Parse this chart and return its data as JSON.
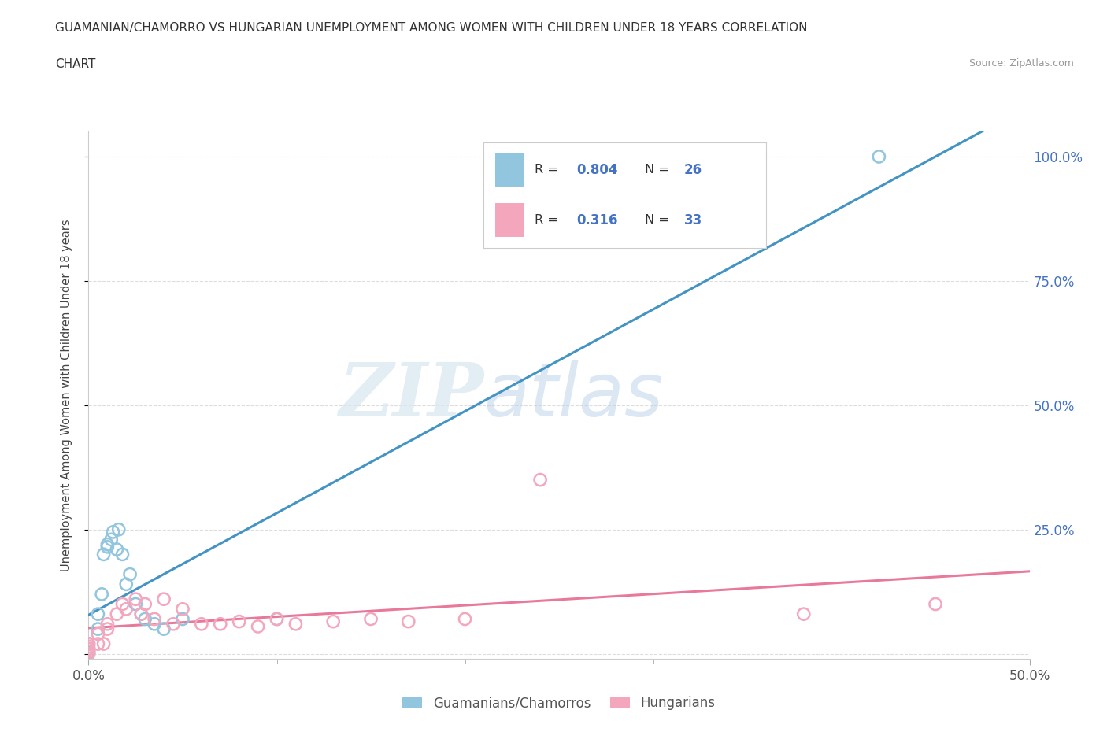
{
  "title_line1": "GUAMANIAN/CHAMORRO VS HUNGARIAN UNEMPLOYMENT AMONG WOMEN WITH CHILDREN UNDER 18 YEARS CORRELATION",
  "title_line2": "CHART",
  "source_text": "Source: ZipAtlas.com",
  "ylabel": "Unemployment Among Women with Children Under 18 years",
  "xlim": [
    0.0,
    0.5
  ],
  "ylim": [
    -0.01,
    1.05
  ],
  "x_ticks": [
    0.0,
    0.5
  ],
  "x_tick_labels": [
    "0.0%",
    "50.0%"
  ],
  "y_ticks_right": [
    0.0,
    0.25,
    0.5,
    0.75,
    1.0
  ],
  "y_tick_labels_right": [
    "",
    "25.0%",
    "50.0%",
    "75.0%",
    "100.0%"
  ],
  "guamanian_color": "#92c5de",
  "hungarian_color": "#f4a6bc",
  "guamanian_line_color": "#4393c3",
  "hungarian_line_color": "#e8799a",
  "R_guamanian": "0.804",
  "N_guamanian": "26",
  "R_hungarian": "0.316",
  "N_hungarian": "33",
  "legend_label_1": "Guamanians/Chamorros",
  "legend_label_2": "Hungarians",
  "watermark_zip": "ZIP",
  "watermark_atlas": "atlas",
  "background_color": "#ffffff",
  "grid_color": "#dddddd",
  "guamanian_x": [
    0.0,
    0.0,
    0.0,
    0.0,
    0.0,
    0.005,
    0.005,
    0.007,
    0.008,
    0.01,
    0.01,
    0.012,
    0.013,
    0.015,
    0.016,
    0.018,
    0.02,
    0.022,
    0.025,
    0.028,
    0.03,
    0.035,
    0.04,
    0.05,
    0.1,
    0.42
  ],
  "guamanian_y": [
    0.0,
    0.002,
    0.005,
    0.01,
    0.02,
    0.05,
    0.08,
    0.12,
    0.2,
    0.215,
    0.22,
    0.23,
    0.245,
    0.21,
    0.25,
    0.2,
    0.14,
    0.16,
    0.1,
    0.08,
    0.07,
    0.06,
    0.05,
    0.07,
    0.07,
    1.0
  ],
  "hungarian_x": [
    0.0,
    0.0,
    0.0,
    0.0,
    0.0,
    0.005,
    0.005,
    0.008,
    0.01,
    0.01,
    0.015,
    0.018,
    0.02,
    0.025,
    0.028,
    0.03,
    0.035,
    0.04,
    0.045,
    0.05,
    0.06,
    0.07,
    0.08,
    0.09,
    0.1,
    0.11,
    0.13,
    0.15,
    0.17,
    0.2,
    0.24,
    0.38,
    0.45
  ],
  "hungarian_y": [
    0.0,
    0.005,
    0.01,
    0.015,
    0.02,
    0.02,
    0.04,
    0.02,
    0.05,
    0.06,
    0.08,
    0.1,
    0.09,
    0.11,
    0.08,
    0.1,
    0.07,
    0.11,
    0.06,
    0.09,
    0.06,
    0.06,
    0.065,
    0.055,
    0.07,
    0.06,
    0.065,
    0.07,
    0.065,
    0.07,
    0.35,
    0.08,
    0.1
  ]
}
